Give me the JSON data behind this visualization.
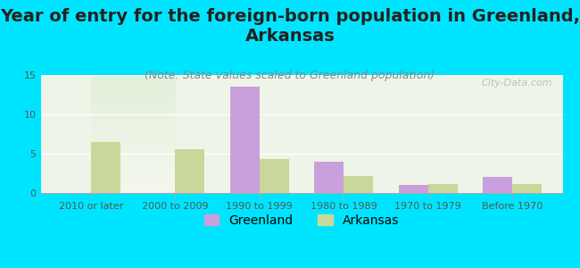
{
  "title": "Year of entry for the foreign-born population in Greenland,\nArkansas",
  "subtitle": "(Note: State values scaled to Greenland population)",
  "categories": [
    "2010 or later",
    "2000 to 2009",
    "1990 to 1999",
    "1980 to 1989",
    "1970 to 1979",
    "Before 1970"
  ],
  "greenland_values": [
    0,
    0,
    13.5,
    4.0,
    1.0,
    2.0
  ],
  "arkansas_values": [
    6.5,
    5.6,
    4.3,
    2.2,
    1.1,
    1.1
  ],
  "greenland_color": "#c9a0dc",
  "arkansas_color": "#c8d89a",
  "bg_color": "#00e5ff",
  "plot_bg_gradient_top": "#e8f5e0",
  "plot_bg_gradient_bottom": "#f5f5f0",
  "ylim": [
    0,
    15
  ],
  "yticks": [
    0,
    5,
    10,
    15
  ],
  "bar_width": 0.35,
  "watermark": "City-Data.com",
  "title_fontsize": 14,
  "subtitle_fontsize": 9,
  "tick_fontsize": 8,
  "legend_fontsize": 10
}
